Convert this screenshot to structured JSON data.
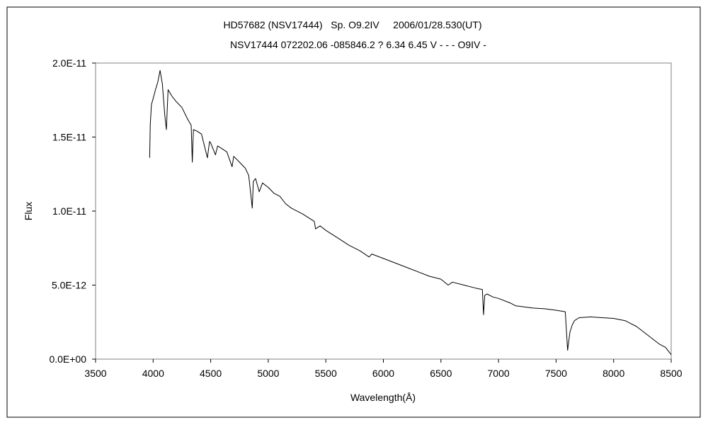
{
  "chart_data": {
    "type": "line",
    "title": "HD57682 (NSV17444)   Sp. O9.2IV     2006/01/28.530(UT)",
    "subtitle": "NSV17444 072202.06 -085846.2 ? 6.34 6.45 V - - - O9IV -",
    "xlabel": "Wavelength(Å)",
    "ylabel": "Flux",
    "xlim": [
      3500,
      8500
    ],
    "ylim": [
      0,
      2e-11
    ],
    "x_ticks": [
      3500,
      4000,
      4500,
      5000,
      5500,
      6000,
      6500,
      7000,
      7500,
      8000,
      8500
    ],
    "x_tick_labels": [
      "3500",
      "4000",
      "4500",
      "5000",
      "5500",
      "6000",
      "6500",
      "7000",
      "7500",
      "8000",
      "8500"
    ],
    "y_ticks": [
      0,
      5e-12,
      1e-11,
      1.5e-11,
      2e-11
    ],
    "y_tick_labels": [
      "0.0E+00",
      "5.0E-12",
      "1.0E-11",
      "1.5E-11",
      "2.0E-11"
    ],
    "grid": false,
    "legend": "none",
    "line_color": "#000000",
    "series": [
      {
        "x": [
          3970,
          3975,
          3985,
          4000,
          4020,
          4040,
          4060,
          4080,
          4101,
          4115,
          4130,
          4160,
          4200,
          4250,
          4300,
          4330,
          4340,
          4350,
          4380,
          4400,
          4420,
          4471,
          4490,
          4500,
          4541,
          4560,
          4600,
          4640,
          4686,
          4700,
          4750,
          4800,
          4830,
          4861,
          4870,
          4890,
          4921,
          4950,
          5000,
          5050,
          5100,
          5150,
          5200,
          5300,
          5400,
          5411,
          5450,
          5500,
          5600,
          5700,
          5800,
          5876,
          5900,
          6000,
          6100,
          6200,
          6300,
          6400,
          6500,
          6563,
          6600,
          6700,
          6800,
          6860,
          6870,
          6880,
          6900,
          6950,
          7000,
          7100,
          7150,
          7200,
          7250,
          7300,
          7400,
          7500,
          7580,
          7600,
          7620,
          7640,
          7660,
          7700,
          7800,
          7900,
          8000,
          8100,
          8200,
          8300,
          8400,
          8450,
          8500
        ],
        "y": [
          1.36e-11,
          1.58e-11,
          1.72e-11,
          1.76e-11,
          1.82e-11,
          1.87e-11,
          1.95e-11,
          1.86e-11,
          1.65e-11,
          1.55e-11,
          1.82e-11,
          1.78e-11,
          1.74e-11,
          1.7e-11,
          1.62e-11,
          1.58e-11,
          1.33e-11,
          1.55e-11,
          1.54e-11,
          1.53e-11,
          1.52e-11,
          1.36e-11,
          1.47e-11,
          1.46e-11,
          1.38e-11,
          1.44e-11,
          1.42e-11,
          1.4e-11,
          1.3e-11,
          1.37e-11,
          1.33e-11,
          1.29e-11,
          1.24e-11,
          1.02e-11,
          1.2e-11,
          1.22e-11,
          1.13e-11,
          1.19e-11,
          1.16e-11,
          1.12e-11,
          1.1e-11,
          1.05e-11,
          1.02e-11,
          9.8e-12,
          9.3e-12,
          8.8e-12,
          9e-12,
          8.7e-12,
          8.2e-12,
          7.7e-12,
          7.3e-12,
          6.9e-12,
          7.1e-12,
          6.8e-12,
          6.5e-12,
          6.2e-12,
          5.9e-12,
          5.6e-12,
          5.4e-12,
          5e-12,
          5.2e-12,
          5e-12,
          4.8e-12,
          4.7e-12,
          3e-12,
          4.3e-12,
          4.4e-12,
          4.2e-12,
          4.1e-12,
          3.8e-12,
          3.6e-12,
          3.55e-12,
          3.5e-12,
          3.45e-12,
          3.4e-12,
          3.3e-12,
          3.2e-12,
          6e-13,
          1.8e-12,
          2.3e-12,
          2.6e-12,
          2.8e-12,
          2.85e-12,
          2.8e-12,
          2.75e-12,
          2.6e-12,
          2.2e-12,
          1.6e-12,
          1e-12,
          8e-13,
          3e-13
        ]
      }
    ]
  }
}
